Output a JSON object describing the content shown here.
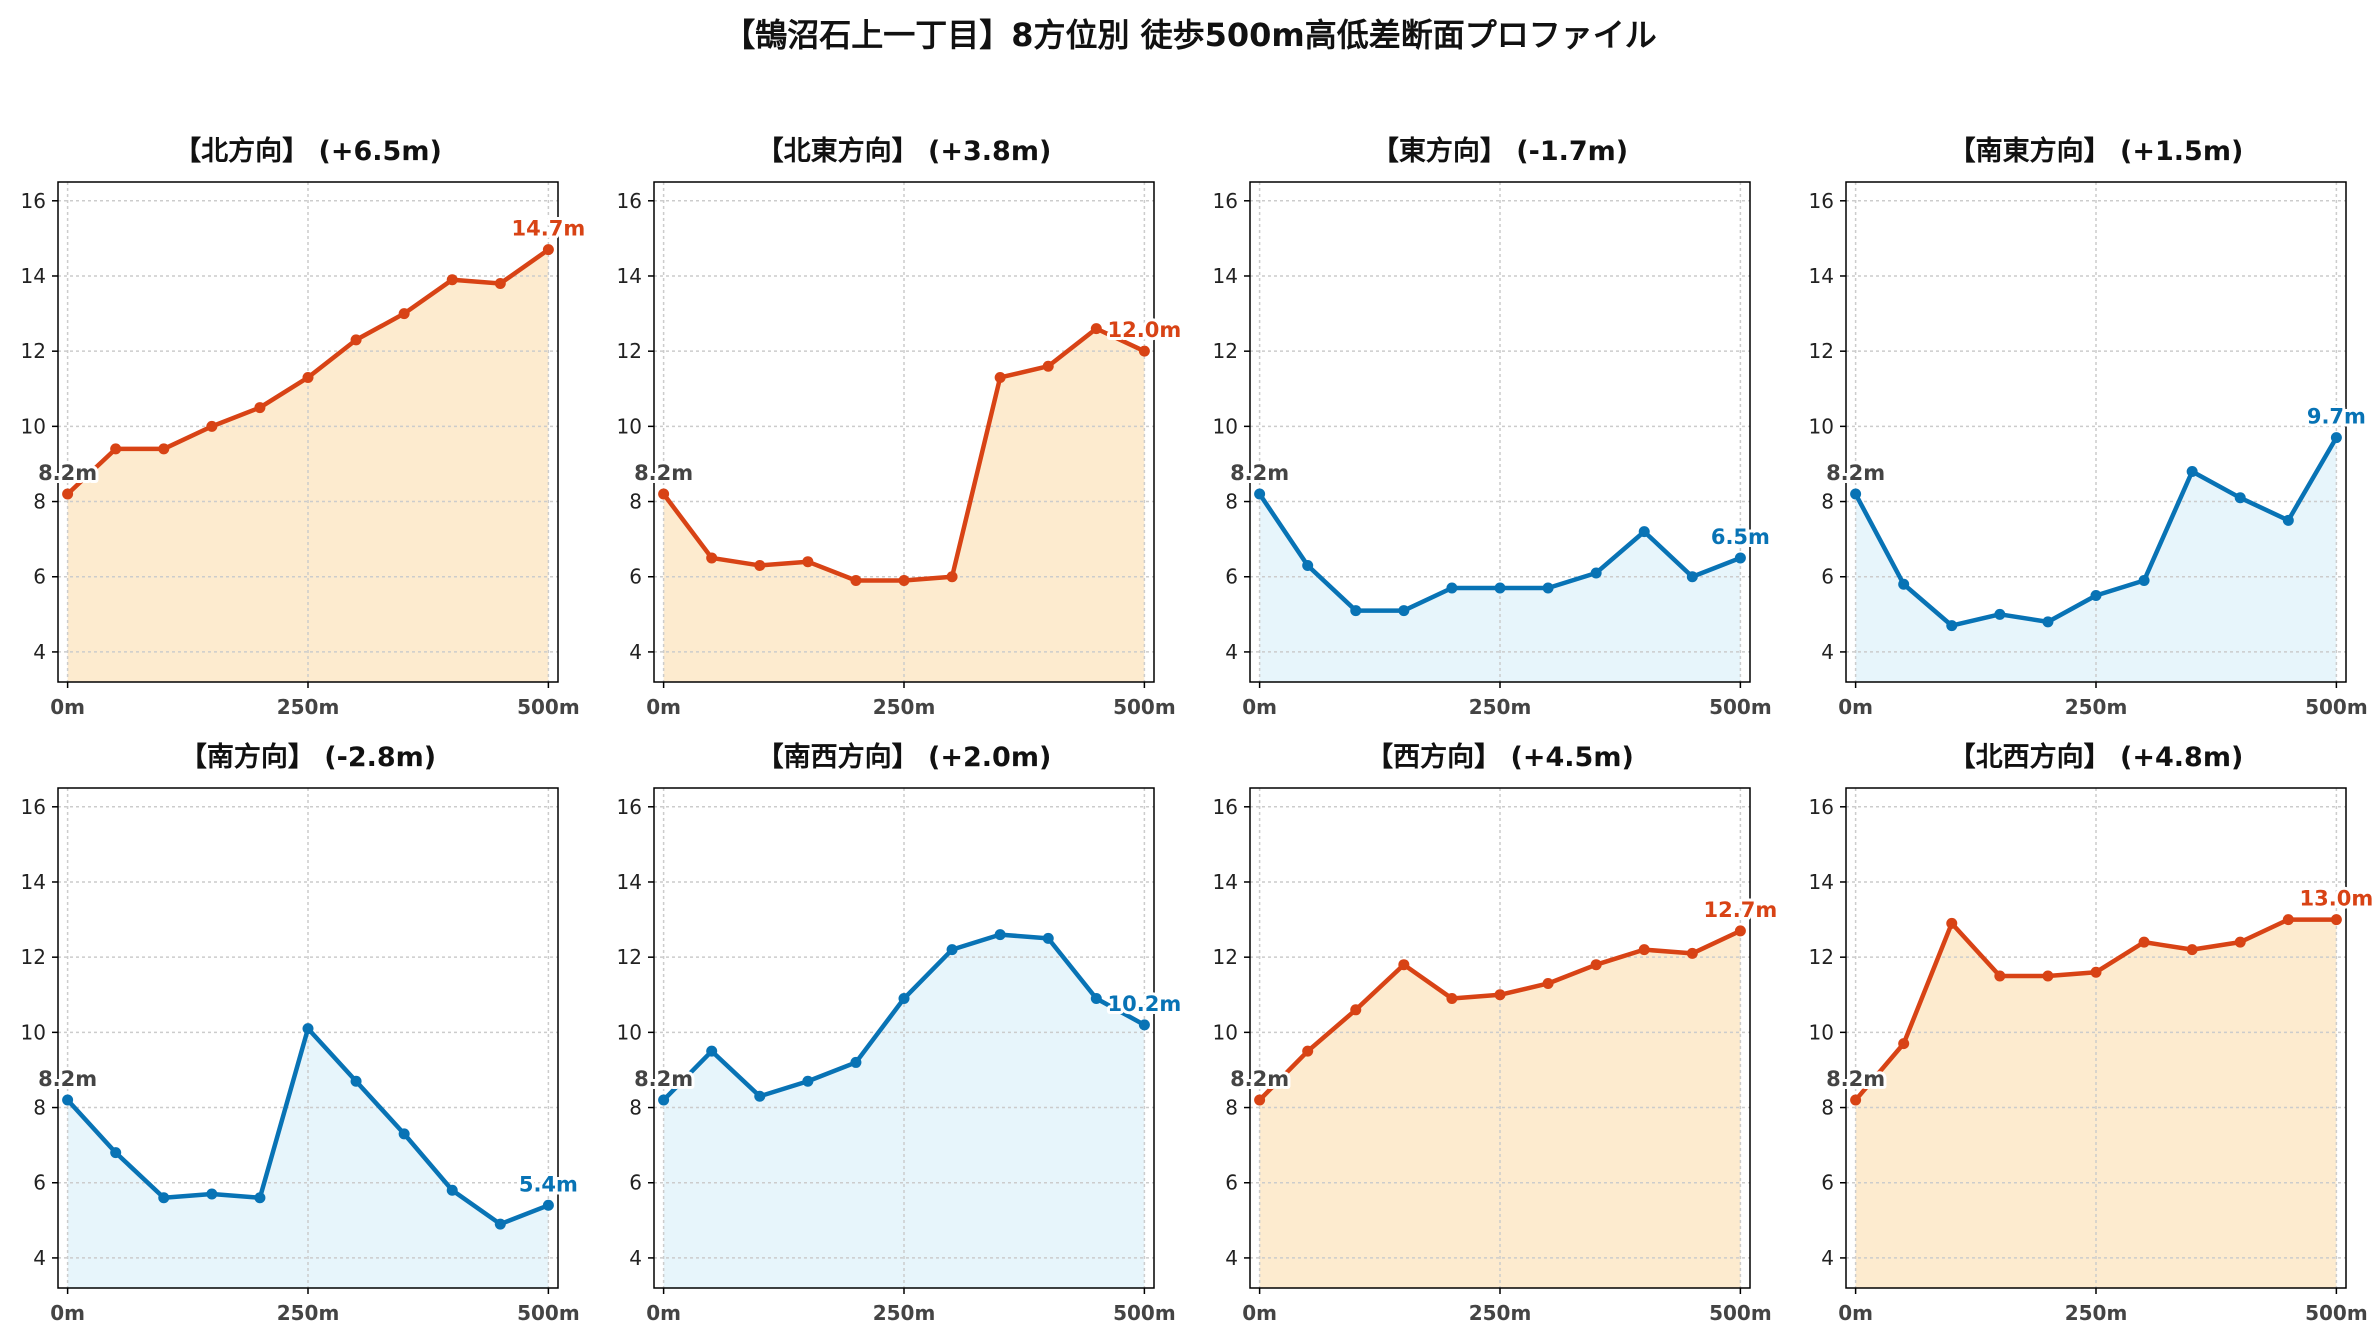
{
  "title": "【鵠沼石上一丁目】8方位別 徒歩500m高低差断面プロファイル",
  "colors": {
    "up_line": "#d84315",
    "up_fill": "#fdebcf",
    "down_line": "#0873b5",
    "down_fill": "#e7f5fb",
    "start_label": "#444444"
  },
  "chart_data": [
    {
      "type": "area",
      "title": "【北方向】 (+6.5m)",
      "trend": "up",
      "x": [
        0,
        50,
        100,
        150,
        200,
        250,
        300,
        350,
        400,
        450,
        500
      ],
      "values": [
        8.2,
        9.4,
        9.4,
        10.0,
        10.5,
        11.3,
        12.3,
        13.0,
        13.9,
        13.8,
        14.7
      ],
      "xticks": [
        "0m",
        "250m",
        "500m"
      ],
      "yticks": [
        "4",
        "6",
        "8",
        "10",
        "12",
        "14",
        "16"
      ],
      "ylim": [
        3.2,
        16.5
      ],
      "xlim": [
        -10,
        510
      ],
      "start_label": "8.2m",
      "end_label": "14.7m",
      "grid": true
    },
    {
      "type": "area",
      "title": "【北東方向】 (+3.8m)",
      "trend": "up",
      "x": [
        0,
        50,
        100,
        150,
        200,
        250,
        300,
        350,
        400,
        450,
        500
      ],
      "values": [
        8.2,
        6.5,
        6.3,
        6.4,
        5.9,
        5.9,
        6.0,
        11.3,
        11.6,
        12.6,
        12.0
      ],
      "xticks": [
        "0m",
        "250m",
        "500m"
      ],
      "yticks": [
        "4",
        "6",
        "8",
        "10",
        "12",
        "14",
        "16"
      ],
      "ylim": [
        3.2,
        16.5
      ],
      "xlim": [
        -10,
        510
      ],
      "start_label": "8.2m",
      "end_label": "12.0m",
      "grid": true
    },
    {
      "type": "area",
      "title": "【東方向】 (-1.7m)",
      "trend": "down",
      "x": [
        0,
        50,
        100,
        150,
        200,
        250,
        300,
        350,
        400,
        450,
        500
      ],
      "values": [
        8.2,
        6.3,
        5.1,
        5.1,
        5.7,
        5.7,
        5.7,
        6.1,
        7.2,
        6.0,
        6.5
      ],
      "xticks": [
        "0m",
        "250m",
        "500m"
      ],
      "yticks": [
        "4",
        "6",
        "8",
        "10",
        "12",
        "14",
        "16"
      ],
      "ylim": [
        3.2,
        16.5
      ],
      "xlim": [
        -10,
        510
      ],
      "start_label": "8.2m",
      "end_label": "6.5m",
      "grid": true
    },
    {
      "type": "area",
      "title": "【南東方向】 (+1.5m)",
      "trend": "down",
      "x": [
        0,
        50,
        100,
        150,
        200,
        250,
        300,
        350,
        400,
        450,
        500
      ],
      "values": [
        8.2,
        5.8,
        4.7,
        5.0,
        4.8,
        5.5,
        5.9,
        8.8,
        8.1,
        7.5,
        9.7
      ],
      "xticks": [
        "0m",
        "250m",
        "500m"
      ],
      "yticks": [
        "4",
        "6",
        "8",
        "10",
        "12",
        "14",
        "16"
      ],
      "ylim": [
        3.2,
        16.5
      ],
      "xlim": [
        -10,
        510
      ],
      "start_label": "8.2m",
      "end_label": "9.7m",
      "grid": true
    },
    {
      "type": "area",
      "title": "【南方向】 (-2.8m)",
      "trend": "down",
      "x": [
        0,
        50,
        100,
        150,
        200,
        250,
        300,
        350,
        400,
        450,
        500
      ],
      "values": [
        8.2,
        6.8,
        5.6,
        5.7,
        5.6,
        10.1,
        8.7,
        7.3,
        5.8,
        4.9,
        5.4
      ],
      "xticks": [
        "0m",
        "250m",
        "500m"
      ],
      "yticks": [
        "4",
        "6",
        "8",
        "10",
        "12",
        "14",
        "16"
      ],
      "ylim": [
        3.2,
        16.5
      ],
      "xlim": [
        -10,
        510
      ],
      "start_label": "8.2m",
      "end_label": "5.4m",
      "grid": true
    },
    {
      "type": "area",
      "title": "【南西方向】 (+2.0m)",
      "trend": "down",
      "x": [
        0,
        50,
        100,
        150,
        200,
        250,
        300,
        350,
        400,
        450,
        500
      ],
      "values": [
        8.2,
        9.5,
        8.3,
        8.7,
        9.2,
        10.9,
        12.2,
        12.6,
        12.5,
        10.9,
        10.2
      ],
      "xticks": [
        "0m",
        "250m",
        "500m"
      ],
      "yticks": [
        "4",
        "6",
        "8",
        "10",
        "12",
        "14",
        "16"
      ],
      "ylim": [
        3.2,
        16.5
      ],
      "xlim": [
        -10,
        510
      ],
      "start_label": "8.2m",
      "end_label": "10.2m",
      "grid": true
    },
    {
      "type": "area",
      "title": "【西方向】 (+4.5m)",
      "trend": "up",
      "x": [
        0,
        50,
        100,
        150,
        200,
        250,
        300,
        350,
        400,
        450,
        500
      ],
      "values": [
        8.2,
        9.5,
        10.6,
        11.8,
        10.9,
        11.0,
        11.3,
        11.8,
        12.2,
        12.1,
        12.7
      ],
      "xticks": [
        "0m",
        "250m",
        "500m"
      ],
      "yticks": [
        "4",
        "6",
        "8",
        "10",
        "12",
        "14",
        "16"
      ],
      "ylim": [
        3.2,
        16.5
      ],
      "xlim": [
        -10,
        510
      ],
      "start_label": "8.2m",
      "end_label": "12.7m",
      "grid": true
    },
    {
      "type": "area",
      "title": "【北西方向】 (+4.8m)",
      "trend": "up",
      "x": [
        0,
        50,
        100,
        150,
        200,
        250,
        300,
        350,
        400,
        450,
        500
      ],
      "values": [
        8.2,
        9.7,
        12.9,
        11.5,
        11.5,
        11.6,
        12.4,
        12.2,
        12.4,
        13.0,
        13.0
      ],
      "xticks": [
        "0m",
        "250m",
        "500m"
      ],
      "yticks": [
        "4",
        "6",
        "8",
        "10",
        "12",
        "14",
        "16"
      ],
      "ylim": [
        3.2,
        16.5
      ],
      "xlim": [
        -10,
        510
      ],
      "start_label": "8.2m",
      "end_label": "13.0m",
      "grid": true
    }
  ]
}
